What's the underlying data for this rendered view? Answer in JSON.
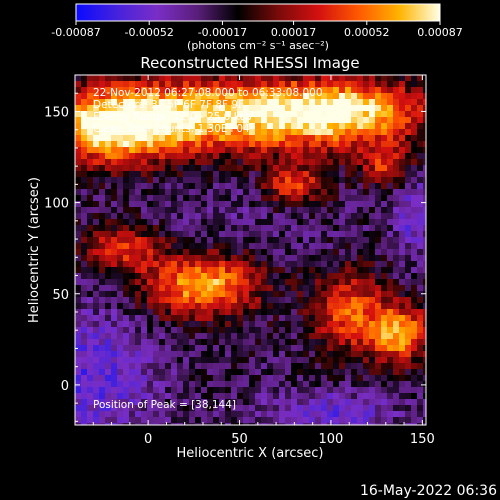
{
  "chart_data": {
    "type": "heatmap",
    "title": "Reconstructed RHESSI Image",
    "xlabel": "Heliocentric X (arcsec)",
    "ylabel": "Heliocentric Y (arcsec)",
    "xlim": [
      -40,
      152
    ],
    "ylim": [
      -22,
      170
    ],
    "x_ticks": [
      0,
      50,
      100,
      150
    ],
    "y_ticks": [
      0,
      50,
      100,
      150
    ],
    "grid": false,
    "colorbar": {
      "min": -0.00087,
      "max": 0.00087,
      "ticks": [
        "-0.00087",
        "-0.00052",
        "-0.00017",
        "0.00017",
        "0.00052",
        "0.00087"
      ],
      "tick_values": [
        -0.00087,
        -0.00052,
        -0.00017,
        0.00017,
        0.00052,
        0.00087
      ],
      "label": "(photons cm⁻² s⁻¹ asec⁻²)",
      "colors": [
        "#0a0aff",
        "#4422dd",
        "#7a2ec6",
        "#5a1e7a",
        "#000000",
        "#7a0a0a",
        "#d41010",
        "#ff5a00",
        "#ffb400",
        "#ffffe8"
      ]
    },
    "annotations": [
      "22-Nov-2012 06:27:08.000 to 06:33:08.000",
      "Detectors: 3F 5F 6F 7F 8F 9F",
      "Energy Range: 12.0 - 25.0 keV",
      "Clean    Total Counts: 1.30E+04"
    ],
    "peak_label": "Position of Peak = [38,144]",
    "peak": [
      38,
      144
    ],
    "bright_regions": [
      {
        "x": 40,
        "y": 148,
        "sx": 55,
        "sy": 14,
        "level": 0.00078
      },
      {
        "x": -20,
        "y": 140,
        "sx": 25,
        "sy": 14,
        "level": 0.0006
      },
      {
        "x": 110,
        "y": 150,
        "sx": 30,
        "sy": 12,
        "level": 0.0005
      },
      {
        "x": 30,
        "y": 55,
        "sx": 22,
        "sy": 12,
        "level": 0.0007
      },
      {
        "x": -15,
        "y": 75,
        "sx": 16,
        "sy": 9,
        "level": 0.00035
      },
      {
        "x": 80,
        "y": 110,
        "sx": 12,
        "sy": 8,
        "level": 0.0004
      },
      {
        "x": 138,
        "y": 28,
        "sx": 11,
        "sy": 11,
        "level": 0.00065
      },
      {
        "x": 110,
        "y": 40,
        "sx": 14,
        "sy": 16,
        "level": 0.00045
      },
      {
        "x": 130,
        "y": 120,
        "sx": 10,
        "sy": 8,
        "level": 0.0003
      }
    ],
    "dim_regions": [
      {
        "x": -30,
        "y": 5,
        "sx": 22,
        "sy": 25,
        "level": -0.0006
      },
      {
        "x": 100,
        "y": -15,
        "sx": 25,
        "sy": 8,
        "level": -0.00055
      },
      {
        "x": 145,
        "y": 95,
        "sx": 8,
        "sy": 15,
        "level": -0.00055
      },
      {
        "x": 50,
        "y": 90,
        "sx": 40,
        "sy": 20,
        "level": -0.0003
      }
    ]
  },
  "footer": {
    "timestamp": "16-May-2022 06:36"
  }
}
